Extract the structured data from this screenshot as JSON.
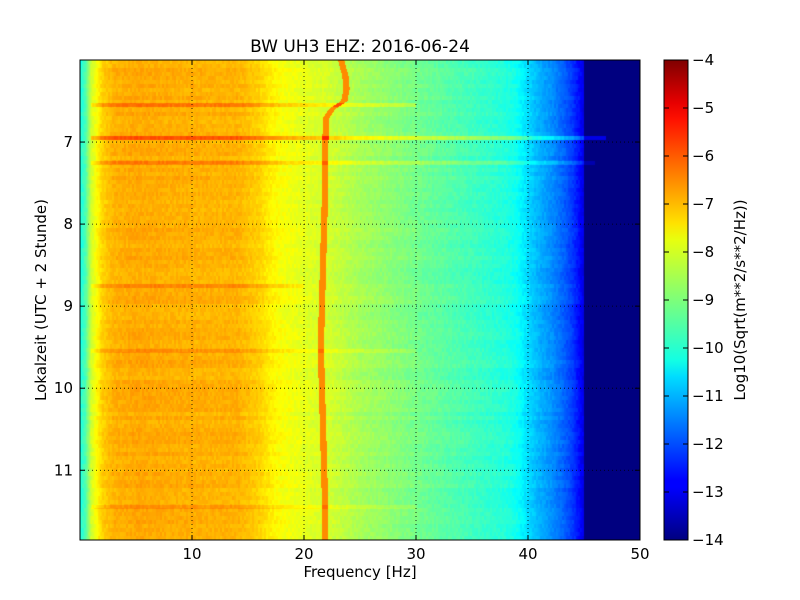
{
  "chart_data": {
    "type": "heatmap",
    "title": "BW UH3 EHZ: 2016-06-24",
    "xlabel": "Frequency [Hz]",
    "ylabel": "Lokalzeit (UTC + 2 Stunde)",
    "xlim": [
      0,
      50
    ],
    "ylim": [
      6.0,
      11.85
    ],
    "y_inverted": true,
    "grid": true,
    "xticks": [
      10,
      20,
      30,
      40,
      50
    ],
    "xtick_labels": [
      "10",
      "20",
      "30",
      "40",
      "50"
    ],
    "yticks": [
      7,
      8,
      9,
      10,
      11
    ],
    "ytick_labels": [
      "7",
      "8",
      "9",
      "10",
      "11"
    ],
    "colormap": "jet",
    "colorbar": {
      "label": "Log10(Sqrt(m**2/s**2/Hz))",
      "range": [
        -14,
        -4
      ],
      "ticks": [
        -4,
        -5,
        -6,
        -7,
        -8,
        -9,
        -10,
        -11,
        -12,
        -13,
        -14
      ],
      "tick_labels": [
        "−4",
        "−5",
        "−6",
        "−7",
        "−8",
        "−9",
        "−10",
        "−11",
        "−12",
        "−13",
        "−14"
      ]
    },
    "spectrum_profile": {
      "frequency_hz": [
        0,
        0.5,
        1,
        2,
        3,
        5,
        8,
        12,
        14,
        16,
        17,
        18,
        20,
        21,
        22,
        23,
        25,
        28,
        30,
        33,
        36,
        38,
        39,
        40,
        41,
        42,
        43,
        44,
        45,
        46,
        47,
        50
      ],
      "log10_amplitude": [
        -10.0,
        -9.5,
        -8.2,
        -7.3,
        -7.0,
        -6.9,
        -6.95,
        -7.0,
        -7.0,
        -7.3,
        -7.6,
        -7.8,
        -8.0,
        -8.1,
        -8.15,
        -8.3,
        -8.6,
        -8.9,
        -9.1,
        -9.4,
        -9.7,
        -9.9,
        -10.1,
        -10.6,
        -11.0,
        -11.3,
        -11.7,
        -12.2,
        -13.0,
        -13.7,
        -14.0,
        -14.0
      ]
    },
    "narrowband_line": {
      "time_h": [
        6.0,
        6.1,
        6.2,
        6.35,
        6.5,
        6.6,
        6.7,
        7.0,
        7.5,
        8.0,
        8.5,
        9.0,
        9.5,
        10.0,
        10.5,
        11.0,
        11.5,
        11.85
      ],
      "frequency_hz": [
        23.3,
        23.5,
        23.7,
        23.8,
        23.6,
        22.5,
        22.0,
        21.9,
        21.9,
        21.8,
        21.7,
        21.6,
        21.5,
        21.6,
        21.7,
        21.8,
        21.9,
        21.9
      ],
      "log10_amplitude": -6.6
    },
    "broadband_events": [
      {
        "time_h": 6.55,
        "f_max_hz": 30,
        "delta": 0.6
      },
      {
        "time_h": 6.95,
        "f_max_hz": 47,
        "delta": 1.0
      },
      {
        "time_h": 7.25,
        "f_max_hz": 46,
        "delta": 0.45
      },
      {
        "time_h": 8.75,
        "f_max_hz": 20,
        "delta": 0.35
      },
      {
        "time_h": 9.55,
        "f_max_hz": 30,
        "delta": 0.3
      },
      {
        "time_h": 11.45,
        "f_max_hz": 30,
        "delta": 0.3
      }
    ]
  }
}
